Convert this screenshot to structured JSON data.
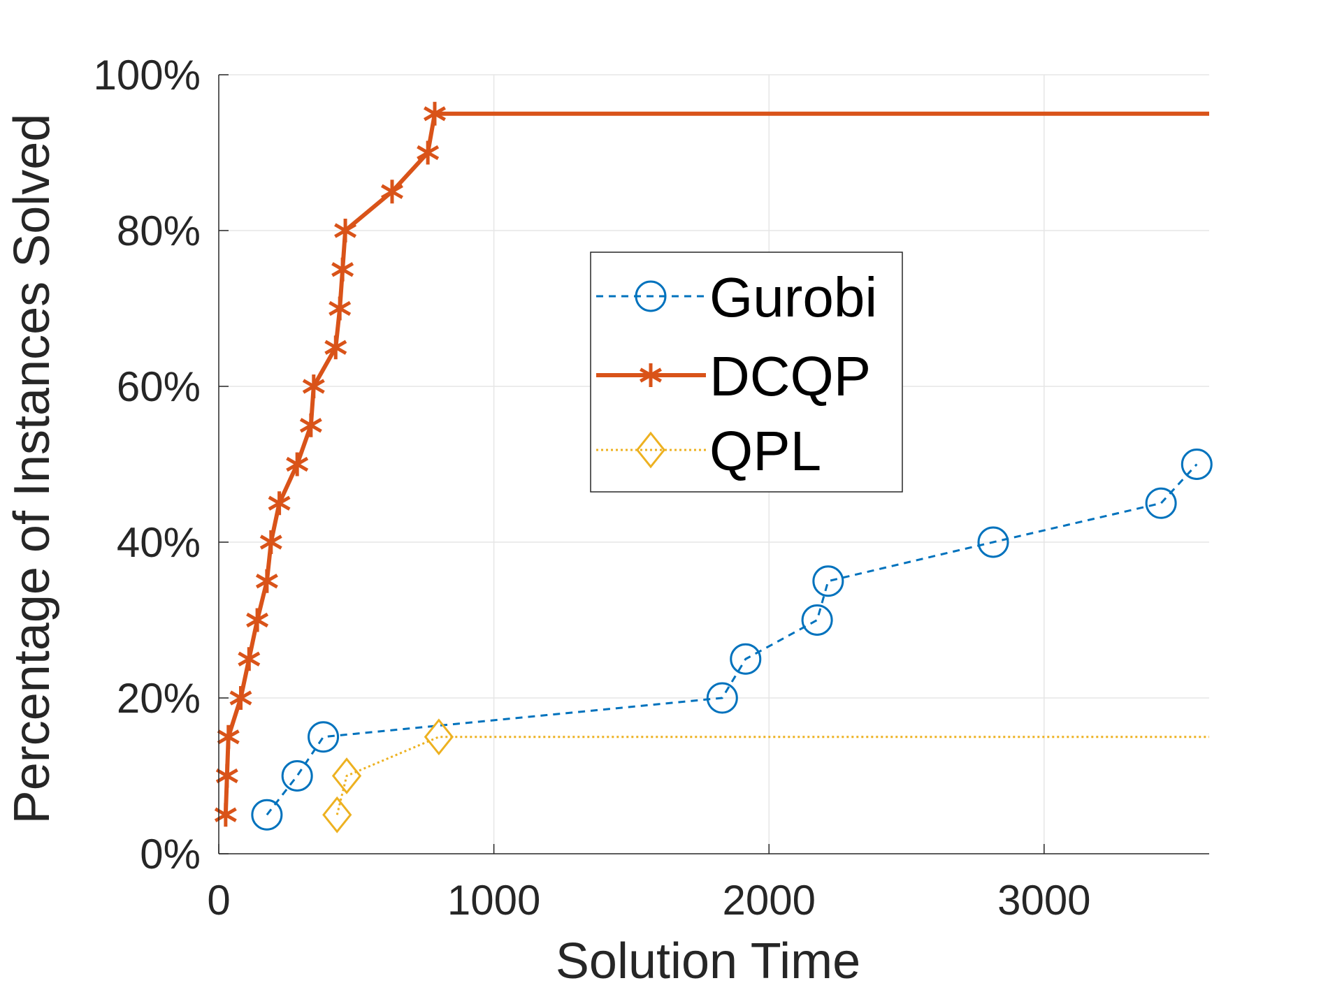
{
  "chart_data": {
    "type": "line",
    "title": "",
    "xlabel": "Solution Time",
    "ylabel": "Percentage of Instances Solved",
    "xlim": [
      0,
      3600
    ],
    "ylim": [
      0,
      100
    ],
    "xticks": [
      0,
      1000,
      2000,
      3000
    ],
    "xtick_labels": [
      "0",
      "1000",
      "2000",
      "3000"
    ],
    "yticks": [
      0,
      20,
      40,
      60,
      80,
      100
    ],
    "ytick_labels": [
      "0%",
      "20%",
      "40%",
      "60%",
      "80%",
      "100%"
    ],
    "grid": true,
    "legend_position": "center",
    "series": [
      {
        "name": "Gurobi",
        "color": "#0072BD",
        "line_style": "dashed",
        "marker": "circle",
        "x": [
          175,
          285,
          380,
          1830,
          1915,
          2175,
          2215,
          2815,
          3425,
          3555
        ],
        "y": [
          5,
          10,
          15,
          20,
          25,
          30,
          35,
          40,
          45,
          50
        ]
      },
      {
        "name": "DCQP",
        "color": "#D95319",
        "line_style": "solid",
        "marker": "asterisk",
        "x": [
          25,
          30,
          35,
          80,
          110,
          140,
          175,
          190,
          220,
          285,
          335,
          345,
          425,
          440,
          450,
          460,
          630,
          760,
          785,
          3600
        ],
        "y": [
          5,
          10,
          15,
          20,
          25,
          30,
          35,
          40,
          45,
          50,
          55,
          60,
          65,
          70,
          75,
          80,
          85,
          90,
          95,
          95
        ],
        "marker_count": 19
      },
      {
        "name": "QPL",
        "color": "#EDB120",
        "line_style": "dotted",
        "marker": "diamond",
        "x": [
          430,
          465,
          800,
          3600
        ],
        "y": [
          5,
          10,
          15,
          15
        ],
        "marker_count": 3
      }
    ]
  }
}
